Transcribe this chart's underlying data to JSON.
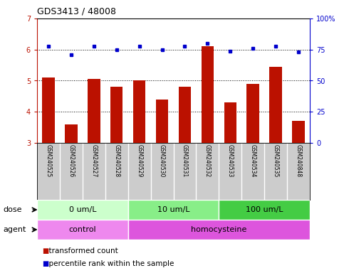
{
  "title": "GDS3413 / 48008",
  "samples": [
    "GSM240525",
    "GSM240526",
    "GSM240527",
    "GSM240528",
    "GSM240529",
    "GSM240530",
    "GSM240531",
    "GSM240532",
    "GSM240533",
    "GSM240534",
    "GSM240535",
    "GSM240848"
  ],
  "red_values": [
    5.1,
    3.6,
    5.05,
    4.8,
    5.0,
    4.4,
    4.8,
    6.1,
    4.3,
    4.9,
    5.45,
    3.7
  ],
  "blue_pct": [
    78,
    71,
    78,
    75,
    78,
    75,
    78,
    80,
    74,
    76,
    78,
    73
  ],
  "ylim_left": [
    3,
    7
  ],
  "ylim_right": [
    0,
    100
  ],
  "yticks_left": [
    3,
    4,
    5,
    6,
    7
  ],
  "yticks_right": [
    0,
    25,
    50,
    75,
    100
  ],
  "ytick_labels_right": [
    "0",
    "25",
    "50",
    "75",
    "100%"
  ],
  "red_color": "#BB1100",
  "blue_color": "#0000CC",
  "bar_width": 0.55,
  "dose_groups": [
    {
      "label": "0 um/L",
      "start": 0,
      "end": 4,
      "color": "#ccffcc"
    },
    {
      "label": "10 um/L",
      "start": 4,
      "end": 8,
      "color": "#88ee88"
    },
    {
      "label": "100 um/L",
      "start": 8,
      "end": 12,
      "color": "#44cc44"
    }
  ],
  "agent_groups": [
    {
      "label": "control",
      "start": 0,
      "end": 4,
      "color": "#ee88ee"
    },
    {
      "label": "homocysteine",
      "start": 4,
      "end": 12,
      "color": "#dd55dd"
    }
  ],
  "dose_label": "dose",
  "agent_label": "agent",
  "legend_red": "transformed count",
  "legend_blue": "percentile rank within the sample",
  "label_area_color": "#cccccc",
  "bg_color": "#ffffff"
}
